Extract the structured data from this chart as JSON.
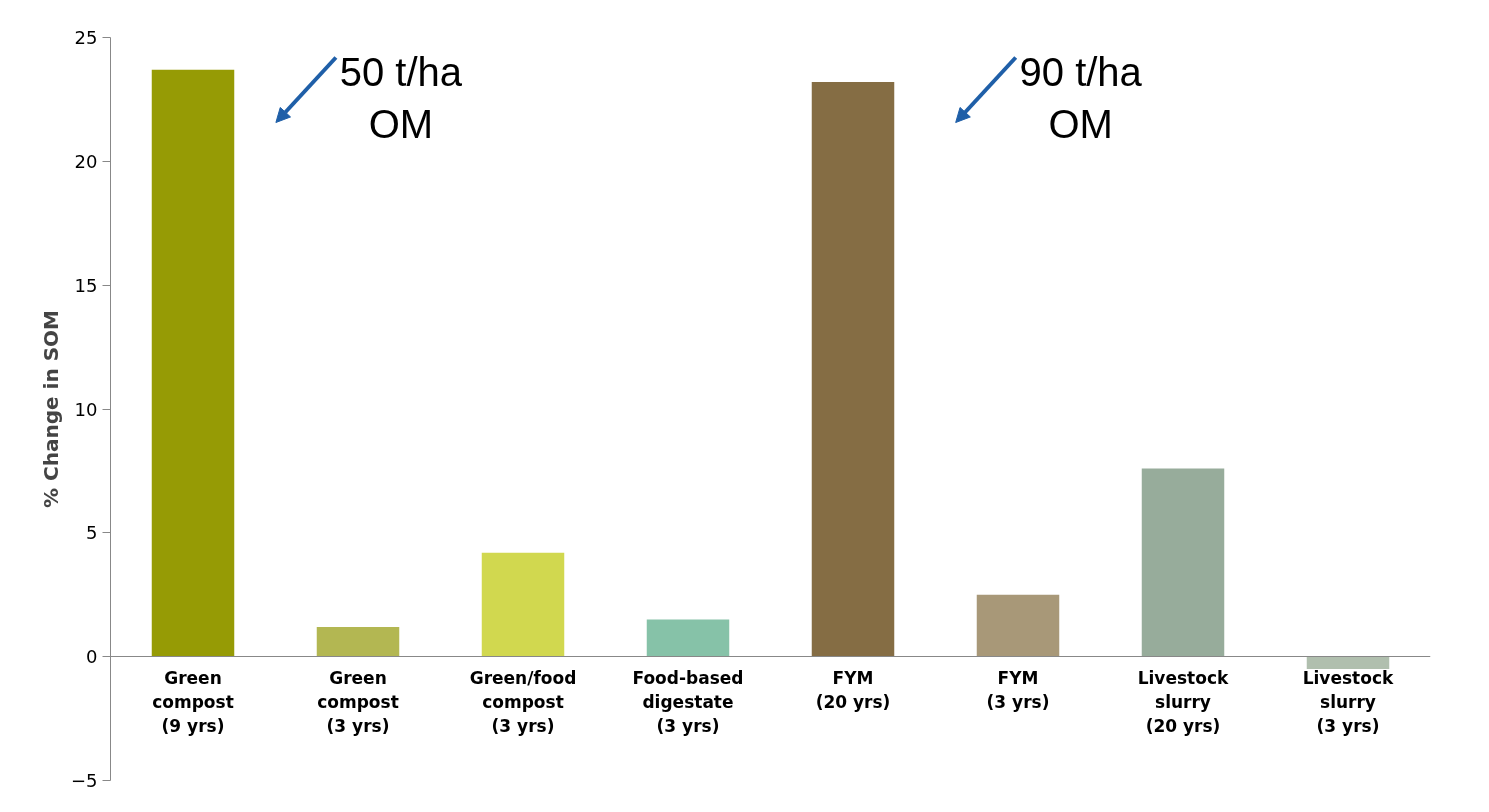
{
  "chart_data": {
    "type": "bar",
    "ylabel": "% Change in SOM",
    "categories": [
      "Green\ncompost\n(9 yrs)",
      "Green\ncompost\n(3 yrs)",
      "Green/food\ncompost\n(3 yrs)",
      "Food-based\ndigestate\n(3 yrs)",
      "FYM\n(20 yrs)",
      "FYM\n(3 yrs)",
      "Livestock\nslurry\n(20 yrs)",
      "Livestock\nslurry\n(3 yrs)"
    ],
    "values": [
      23.7,
      1.2,
      4.2,
      1.5,
      23.2,
      2.5,
      7.6,
      -0.5
    ],
    "colors": [
      "#969b05",
      "#b3b752",
      "#d1d84f",
      "#86c2a8",
      "#856d44",
      "#a89878",
      "#97ac9b",
      "#b0bfae"
    ],
    "ylim": [
      -5,
      25
    ],
    "yticks": [
      -5,
      0,
      5,
      10,
      15,
      20,
      25
    ],
    "grid": false,
    "annotations": [
      "50 t/ha\nOM",
      "90 t/ha\nOM"
    ]
  }
}
